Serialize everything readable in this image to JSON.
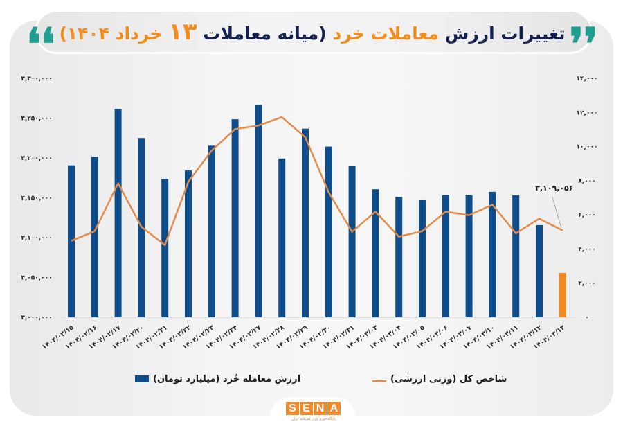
{
  "header": {
    "title_part1": "تغییرات ارزش",
    "title_part2": "معاملات خرد",
    "title_part3": "(میانه معاملات",
    "title_part4": "۱۳",
    "title_part5": "خرداد ۱۴۰۴)",
    "quote_open": "❛❛",
    "quote_close": "❜❜"
  },
  "legend": {
    "bars_label": "ارزش معامله خُرد (میلیارد تومان)",
    "line_label": "شاخص کل (وزنی ارزشی)"
  },
  "logo": {
    "letters": [
      "S",
      "E",
      "N",
      "A"
    ],
    "subtitle": "پایگاه خبری بازار سرمایه ایران"
  },
  "colors": {
    "bar": "#0f4c8a",
    "bar_highlight": "#f28a1e",
    "line": "#e38b4a",
    "title_dark": "#14214f",
    "title_accent": "#f28c1c",
    "quote": "#1f9e8f"
  },
  "chart_data": {
    "type": "bar",
    "title": "تغییرات ارزش معاملات خرد (میانه معاملات ۱۳ خرداد ۱۴۰۴)",
    "categories": [
      "۱۴۰۴/۰۲/۱۵",
      "۱۴۰۴/۰۲/۱۶",
      "۱۴۰۴/۰۲/۱۷",
      "۱۴۰۴/۰۲/۲۰",
      "۱۴۰۴/۰۲/۲۱",
      "۱۴۰۴/۰۲/۲۲",
      "۱۴۰۴/۰۲/۲۳",
      "۱۴۰۴/۰۲/۲۴",
      "۱۴۰۴/۰۲/۲۷",
      "۱۴۰۴/۰۲/۲۸",
      "۱۴۰۴/۰۲/۲۹",
      "۱۴۰۴/۰۲/۳۰",
      "۱۴۰۴/۰۲/۳۱",
      "۱۴۰۴/۰۳/۰۳",
      "۱۴۰۴/۰۳/۰۴",
      "۱۴۰۴/۰۳/۰۵",
      "۱۴۰۴/۰۳/۰۶",
      "۱۴۰۴/۰۳/۰۷",
      "۱۴۰۴/۰۳/۱۰",
      "۱۴۰۴/۰۳/۱۱",
      "۱۴۰۴/۰۳/۱۲",
      "۱۴۰۴/۰۳/۱۳"
    ],
    "series": [
      {
        "name": "ارزش معامله خُرد (میلیارد تومان)",
        "type": "bar",
        "axis": "right",
        "values": [
          8900,
          9400,
          12200,
          10500,
          8100,
          8600,
          10050,
          11600,
          12450,
          9300,
          11050,
          10000,
          8850,
          7500,
          7050,
          6900,
          7150,
          7150,
          7350,
          7150,
          5400,
          2600
        ],
        "highlight_last": true
      },
      {
        "name": "شاخص کل (وزنی ارزشی)",
        "type": "line",
        "axis": "left",
        "values": [
          3095900,
          3108100,
          3168300,
          3113400,
          3090700,
          3170100,
          3209300,
          3236300,
          3240700,
          3251200,
          3225900,
          3157000,
          3107300,
          3132600,
          3101200,
          3108100,
          3132600,
          3128200,
          3141300,
          3105500,
          3123800,
          3109056
        ]
      }
    ],
    "left_axis": {
      "range": [
        3000000,
        3300000
      ],
      "ticks": [
        3000000,
        3050000,
        3100000,
        3150000,
        3200000,
        3250000,
        3300000
      ],
      "tick_labels": [
        "۳,۰۰۰,۰۰۰",
        "۳,۰۵۰,۰۰۰",
        "۳,۱۰۰,۰۰۰",
        "۳,۱۵۰,۰۰۰",
        "۳,۲۰۰,۰۰۰",
        "۳,۲۵۰,۰۰۰",
        "۳,۳۰۰,۰۰۰"
      ]
    },
    "right_axis": {
      "range": [
        0,
        14000
      ],
      "ticks": [
        0,
        2000,
        4000,
        6000,
        8000,
        10000,
        12000,
        14000
      ],
      "tick_labels": [
        "۰",
        "۲,۰۰۰",
        "۴,۰۰۰",
        "۶,۰۰۰",
        "۸,۰۰۰",
        "۱۰,۰۰۰",
        "۱۲,۰۰۰",
        "۱۴,۰۰۰"
      ]
    },
    "annotations": [
      {
        "text": "۳,۱۰۹,۰۵۶",
        "target_index": 21,
        "series": 1
      }
    ],
    "grid": false,
    "legend_position": "bottom",
    "xlabel": "",
    "ylabel": ""
  }
}
